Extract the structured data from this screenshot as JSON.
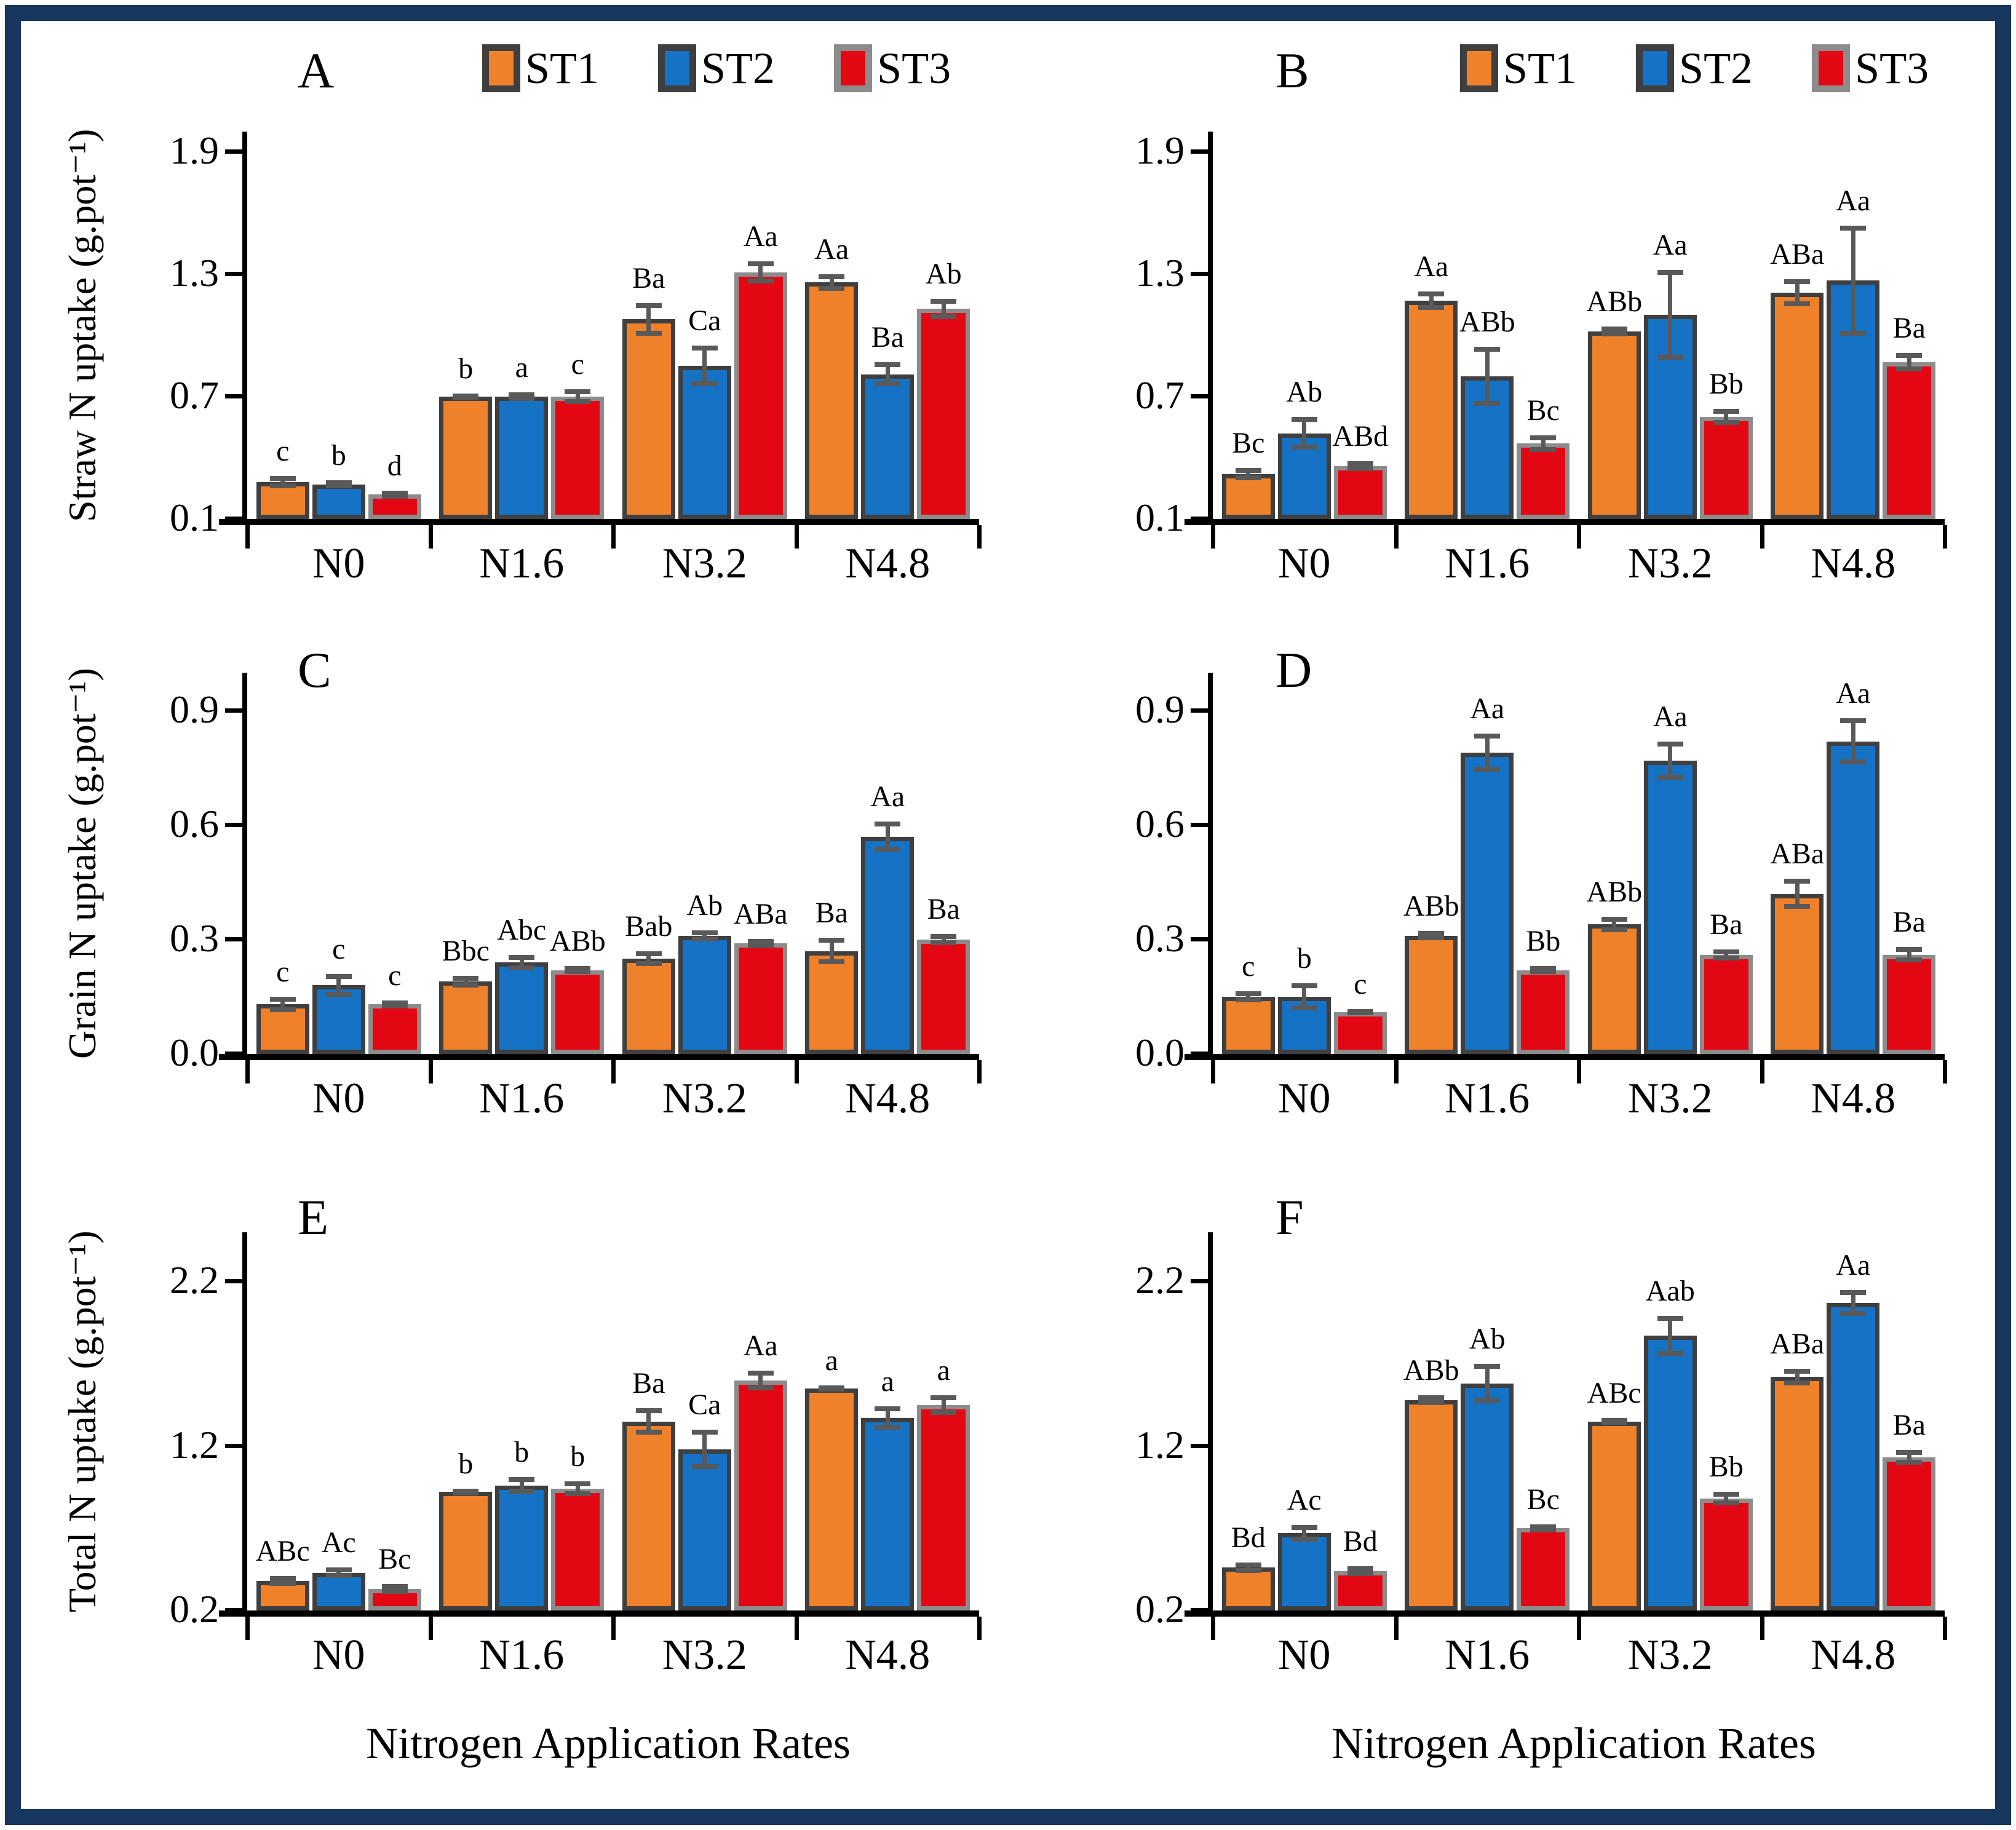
{
  "figure": {
    "border_color": "#17375E",
    "background": "#ffffff",
    "x_axis_title": "Nitrogen Application Rates",
    "error_bar_color": "#595959",
    "legend": {
      "items": [
        {
          "label": "ST1",
          "color": "#F0812B",
          "border": "#3F3F3F"
        },
        {
          "label": "ST2",
          "color": "#1572C5",
          "border": "#3F3F3F"
        },
        {
          "label": "ST3",
          "color": "#E30613",
          "border": "#8C8C8C"
        }
      ]
    }
  },
  "chart_data": [
    {
      "id": "A",
      "type": "bar",
      "title": "A",
      "legend": true,
      "x_title": false,
      "ylabel": "Straw N uptake (g.pot⁻¹)",
      "categories": [
        "N0",
        "N1.6",
        "N3.2",
        "N4.8"
      ],
      "ylim": [
        0.1,
        2.0
      ],
      "yticks": [
        0.1,
        0.7,
        1.3,
        1.9
      ],
      "ytick_labels": [
        "0.1",
        "0.7",
        "1.3",
        "1.9"
      ],
      "series": [
        {
          "name": "ST1",
          "values": [
            0.28,
            0.7,
            1.08,
            1.26
          ],
          "errors": [
            0.03,
            0.015,
            0.08,
            0.04
          ],
          "letters": [
            "c",
            "b",
            "Ba",
            "Aa"
          ]
        },
        {
          "name": "ST2",
          "values": [
            0.27,
            0.7,
            0.85,
            0.81
          ],
          "errors": [
            0.02,
            0.02,
            0.1,
            0.06
          ],
          "letters": [
            "b",
            "a",
            "Ca",
            "Ba"
          ]
        },
        {
          "name": "ST3",
          "values": [
            0.22,
            0.7,
            1.31,
            1.13
          ],
          "errors": [
            0.02,
            0.035,
            0.055,
            0.05
          ],
          "letters": [
            "d",
            "c",
            "Aa",
            "Ab"
          ]
        }
      ]
    },
    {
      "id": "B",
      "type": "bar",
      "title": "B",
      "legend": true,
      "x_title": false,
      "ylabel": "",
      "categories": [
        "N0",
        "N1.6",
        "N3.2",
        "N4.8"
      ],
      "ylim": [
        0.1,
        2.0
      ],
      "yticks": [
        0.1,
        0.7,
        1.3,
        1.9
      ],
      "ytick_labels": [
        "0.1",
        "0.7",
        "1.3",
        "1.9"
      ],
      "series": [
        {
          "name": "ST1",
          "values": [
            0.32,
            1.17,
            1.02,
            1.21
          ],
          "errors": [
            0.03,
            0.045,
            0.025,
            0.065
          ],
          "letters": [
            "Bc",
            "Aa",
            "ABb",
            "ABa"
          ]
        },
        {
          "name": "ST2",
          "values": [
            0.52,
            0.8,
            1.1,
            1.27
          ],
          "errors": [
            0.08,
            0.145,
            0.22,
            0.27
          ],
          "letters": [
            "Ab",
            "ABb",
            "Aa",
            "Aa"
          ]
        },
        {
          "name": "ST3",
          "values": [
            0.36,
            0.47,
            0.6,
            0.87
          ],
          "errors": [
            0.025,
            0.04,
            0.04,
            0.045
          ],
          "letters": [
            "ABd",
            "Bc",
            "Bb",
            "Ba"
          ]
        }
      ]
    },
    {
      "id": "C",
      "type": "bar",
      "title": "C",
      "legend": false,
      "x_title": false,
      "ylabel": "Grain N uptake (g.pot⁻¹)",
      "categories": [
        "N0",
        "N1.6",
        "N3.2",
        "N4.8"
      ],
      "ylim": [
        0.0,
        1.0
      ],
      "yticks": [
        0.0,
        0.3,
        0.6,
        0.9
      ],
      "ytick_labels": [
        "0.0",
        "0.3",
        "0.6",
        "0.9"
      ],
      "series": [
        {
          "name": "ST1",
          "values": [
            0.13,
            0.19,
            0.25,
            0.27
          ],
          "errors": [
            0.02,
            0.015,
            0.02,
            0.035
          ],
          "letters": [
            "c",
            "Bbc",
            "Bab",
            "Ba"
          ]
        },
        {
          "name": "ST2",
          "values": [
            0.18,
            0.24,
            0.31,
            0.57
          ],
          "errors": [
            0.03,
            0.02,
            0.015,
            0.04
          ],
          "letters": [
            "c",
            "Abc",
            "Ab",
            "Aa"
          ]
        },
        {
          "name": "ST3",
          "values": [
            0.13,
            0.22,
            0.29,
            0.3
          ],
          "errors": [
            0.01,
            0.01,
            0.012,
            0.015
          ],
          "letters": [
            "c",
            "ABb",
            "ABa",
            "Ba"
          ]
        }
      ]
    },
    {
      "id": "D",
      "type": "bar",
      "title": "D",
      "legend": false,
      "x_title": false,
      "ylabel": "",
      "categories": [
        "N0",
        "N1.6",
        "N3.2",
        "N4.8"
      ],
      "ylim": [
        0.0,
        1.0
      ],
      "yticks": [
        0.0,
        0.3,
        0.6,
        0.9
      ],
      "ytick_labels": [
        "0.0",
        "0.3",
        "0.6",
        "0.9"
      ],
      "series": [
        {
          "name": "ST1",
          "values": [
            0.15,
            0.31,
            0.34,
            0.42
          ],
          "errors": [
            0.015,
            0.012,
            0.02,
            0.04
          ],
          "letters": [
            "c",
            "ABb",
            "ABb",
            "ABa"
          ]
        },
        {
          "name": "ST2",
          "values": [
            0.15,
            0.79,
            0.77,
            0.82
          ],
          "errors": [
            0.035,
            0.05,
            0.05,
            0.06
          ],
          "letters": [
            "b",
            "Aa",
            "Aa",
            "Aa"
          ]
        },
        {
          "name": "ST3",
          "values": [
            0.11,
            0.22,
            0.26,
            0.26
          ],
          "errors": [
            0.008,
            0.01,
            0.015,
            0.02
          ],
          "letters": [
            "c",
            "Bb",
            "Ba",
            "Ba"
          ]
        }
      ]
    },
    {
      "id": "E",
      "type": "bar",
      "title": "E",
      "legend": false,
      "x_title": true,
      "ylabel": "Total N uptake (g.pot⁻¹)",
      "categories": [
        "N0",
        "N1.6",
        "N3.2",
        "N4.8"
      ],
      "ylim": [
        0.2,
        2.5
      ],
      "yticks": [
        0.2,
        1.2,
        2.2
      ],
      "ytick_labels": [
        "0.2",
        "1.2",
        "2.2"
      ],
      "series": [
        {
          "name": "ST1",
          "values": [
            0.38,
            0.92,
            1.35,
            1.55
          ],
          "errors": [
            0.03,
            0.02,
            0.08,
            0.02
          ],
          "letters": [
            "ABc",
            "b",
            "Ba",
            "a"
          ]
        },
        {
          "name": "ST2",
          "values": [
            0.43,
            0.96,
            1.18,
            1.37
          ],
          "errors": [
            0.03,
            0.05,
            0.12,
            0.07
          ],
          "letters": [
            "Ac",
            "b",
            "Ca",
            "a"
          ]
        },
        {
          "name": "ST3",
          "values": [
            0.33,
            0.94,
            1.6,
            1.45
          ],
          "errors": [
            0.03,
            0.045,
            0.06,
            0.06
          ],
          "letters": [
            "Bc",
            "b",
            "Aa",
            "a"
          ]
        }
      ]
    },
    {
      "id": "F",
      "type": "bar",
      "title": "F",
      "legend": false,
      "x_title": true,
      "ylabel": "",
      "categories": [
        "N0",
        "N1.6",
        "N3.2",
        "N4.8"
      ],
      "ylim": [
        0.2,
        2.5
      ],
      "yticks": [
        0.2,
        1.2,
        2.2
      ],
      "ytick_labels": [
        "0.2",
        "1.2",
        "2.2"
      ],
      "series": [
        {
          "name": "ST1",
          "values": [
            0.46,
            1.48,
            1.35,
            1.62
          ],
          "errors": [
            0.03,
            0.03,
            0.02,
            0.05
          ],
          "letters": [
            "Bd",
            "ABb",
            "ABc",
            "ABa"
          ]
        },
        {
          "name": "ST2",
          "values": [
            0.67,
            1.58,
            1.87,
            2.07
          ],
          "errors": [
            0.05,
            0.12,
            0.12,
            0.08
          ],
          "letters": [
            "Ac",
            "Ab",
            "Aab",
            "Aa"
          ]
        },
        {
          "name": "ST3",
          "values": [
            0.44,
            0.7,
            0.88,
            1.13
          ],
          "errors": [
            0.03,
            0.025,
            0.04,
            0.045
          ],
          "letters": [
            "Bd",
            "Bc",
            "Bb",
            "Ba"
          ]
        }
      ]
    }
  ]
}
